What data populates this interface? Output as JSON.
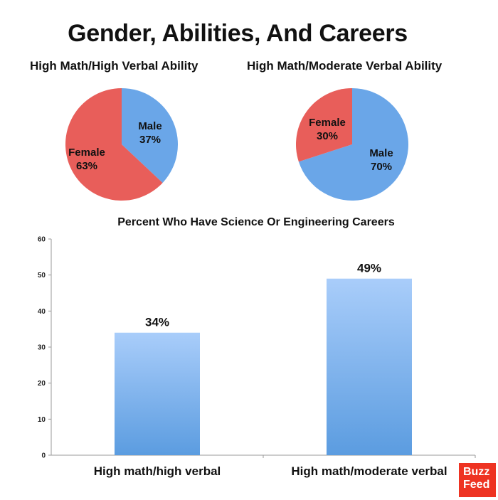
{
  "title": "Gender, Abilities, And Careers",
  "logo_text": "BuzzFeed",
  "colors": {
    "female": "#e85e5a",
    "male": "#6aa6e8",
    "bar_top": "#a9cdfa",
    "bar_bottom": "#5b9ce0"
  },
  "chart_data": [
    {
      "type": "pie",
      "title": "High Math/High Verbal Ability",
      "slices": [
        {
          "label": "Male",
          "value": 37,
          "display": "37%"
        },
        {
          "label": "Female",
          "value": 63,
          "display": "63%"
        }
      ]
    },
    {
      "type": "pie",
      "title": "High Math/Moderate Verbal Ability",
      "slices": [
        {
          "label": "Male",
          "value": 70,
          "display": "70%"
        },
        {
          "label": "Female",
          "value": 30,
          "display": "30%"
        }
      ]
    },
    {
      "type": "bar",
      "title": "Percent Who Have Science Or Engineering Careers",
      "categories": [
        "High math/high verbal",
        "High math/moderate verbal"
      ],
      "values": [
        34,
        49
      ],
      "data_labels": [
        "34%",
        "49%"
      ],
      "ylim": [
        0,
        60
      ],
      "yticks": [
        0,
        10,
        20,
        30,
        40,
        50,
        60
      ],
      "grid": false
    }
  ]
}
